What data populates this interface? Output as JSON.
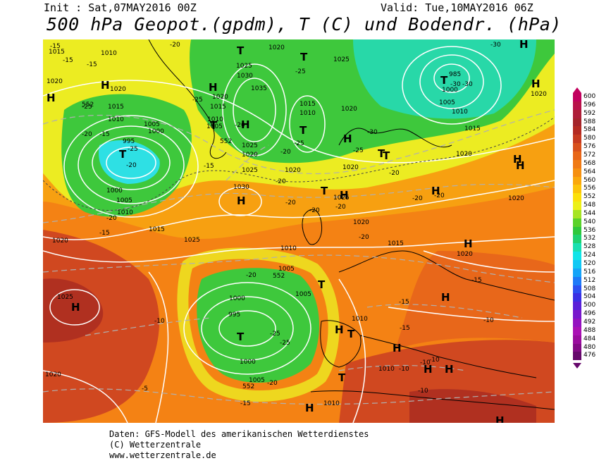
{
  "header": {
    "init": "Init : Sat,07MAY2016 00Z",
    "valid": "Valid: Tue,10MAY2016 06Z",
    "title": "500 hPa Geopot.(gpdm), T (C) und Bodendr. (hPa)"
  },
  "footer": {
    "line1": "Daten: GFS-Modell des amerikanischen Wetterdienstes",
    "line2": "(C) Wetterzentrale",
    "line3": "www.wetterzentrale.de"
  },
  "legend": {
    "levels": [
      {
        "value": "600",
        "color": "#c2005e"
      },
      {
        "value": "596",
        "color": "#b8124a"
      },
      {
        "value": "592",
        "color": "#ae1e38"
      },
      {
        "value": "588",
        "color": "#a4242a"
      },
      {
        "value": "584",
        "color": "#b42a22"
      },
      {
        "value": "580",
        "color": "#c63a20"
      },
      {
        "value": "576",
        "color": "#d8501c"
      },
      {
        "value": "572",
        "color": "#e86618"
      },
      {
        "value": "568",
        "color": "#f07a14"
      },
      {
        "value": "564",
        "color": "#f69010"
      },
      {
        "value": "560",
        "color": "#faa80c"
      },
      {
        "value": "556",
        "color": "#fcc40a"
      },
      {
        "value": "552",
        "color": "#fce00a"
      },
      {
        "value": "548",
        "color": "#ecf018"
      },
      {
        "value": "544",
        "color": "#a6e424"
      },
      {
        "value": "540",
        "color": "#5ad22a"
      },
      {
        "value": "536",
        "color": "#2ec83c"
      },
      {
        "value": "532",
        "color": "#1ed270"
      },
      {
        "value": "528",
        "color": "#18e0b0"
      },
      {
        "value": "524",
        "color": "#10e4e8"
      },
      {
        "value": "520",
        "color": "#10c8f4"
      },
      {
        "value": "516",
        "color": "#14a4f8"
      },
      {
        "value": "512",
        "color": "#1e7af8"
      },
      {
        "value": "508",
        "color": "#2c50f0"
      },
      {
        "value": "504",
        "color": "#3a30e4"
      },
      {
        "value": "500",
        "color": "#5a20d8"
      },
      {
        "value": "496",
        "color": "#7818cc"
      },
      {
        "value": "492",
        "color": "#9412c0"
      },
      {
        "value": "488",
        "color": "#aa10b4"
      },
      {
        "value": "484",
        "color": "#9a0c9e"
      },
      {
        "value": "480",
        "color": "#820a86"
      },
      {
        "value": "476",
        "color": "#66086c"
      }
    ]
  },
  "map": {
    "colors": {
      "green": "#3ec83c",
      "teal": "#28d8a8",
      "cyan": "#2ee0e4",
      "yellow": "#ecec22",
      "orange_light": "#f7a011",
      "orange": "#f48214",
      "orange_dark": "#e8671a",
      "red": "#d04820",
      "red_dark": "#b03020",
      "contour": "#ffffff",
      "temp": "#b0b0b0"
    },
    "pressure_labels": [
      {
        "id": "p1015a",
        "text": "1015"
      },
      {
        "id": "p1010a",
        "text": "1010"
      },
      {
        "id": "p1020a",
        "text": "1020"
      },
      {
        "id": "p1015b",
        "text": "1015"
      },
      {
        "id": "p1010b",
        "text": "1010"
      },
      {
        "id": "p1005a",
        "text": "1005"
      },
      {
        "id": "p1000a",
        "text": "1000"
      },
      {
        "id": "p995a",
        "text": "995"
      },
      {
        "id": "p1000b",
        "text": "1000"
      },
      {
        "id": "p1005b",
        "text": "1005"
      },
      {
        "id": "p1010c",
        "text": "1010"
      },
      {
        "id": "p1015c",
        "text": "1015"
      },
      {
        "id": "p1020b",
        "text": "1020"
      },
      {
        "id": "p1020c",
        "text": "1020"
      },
      {
        "id": "p1025a",
        "text": "1025"
      },
      {
        "id": "p1030a",
        "text": "1030"
      },
      {
        "id": "p1035a",
        "text": "1035"
      },
      {
        "id": "p1025b",
        "text": "1025"
      },
      {
        "id": "p1020d",
        "text": "1020"
      },
      {
        "id": "p1015d",
        "text": "1015"
      },
      {
        "id": "p1010d",
        "text": "1010"
      },
      {
        "id": "p1005c",
        "text": "1005"
      },
      {
        "id": "p1025c",
        "text": "1025"
      },
      {
        "id": "p1020e",
        "text": "1020"
      },
      {
        "id": "p1025d",
        "text": "1025"
      },
      {
        "id": "p1020f",
        "text": "1020"
      },
      {
        "id": "p1030b",
        "text": "1030"
      },
      {
        "id": "p1015e",
        "text": "1015"
      },
      {
        "id": "p1010e",
        "text": "1010"
      },
      {
        "id": "p1020g",
        "text": "1020"
      },
      {
        "id": "p1025e",
        "text": "1025"
      },
      {
        "id": "p1020h",
        "text": "1020"
      },
      {
        "id": "p985",
        "text": "985"
      },
      {
        "id": "p1000c",
        "text": "1000"
      },
      {
        "id": "p1005d",
        "text": "1005"
      },
      {
        "id": "p1010f",
        "text": "1010"
      },
      {
        "id": "p1015f",
        "text": "1015"
      },
      {
        "id": "p1020i",
        "text": "1020"
      },
      {
        "id": "p1020j",
        "text": "1020"
      },
      {
        "id": "p1020k",
        "text": "1020"
      },
      {
        "id": "p1025f",
        "text": "1025"
      },
      {
        "id": "p1015g",
        "text": "1015"
      },
      {
        "id": "p1020l",
        "text": "1020"
      },
      {
        "id": "p1010g",
        "text": "1010"
      },
      {
        "id": "p1005e",
        "text": "1005"
      },
      {
        "id": "p1000d",
        "text": "1000"
      },
      {
        "id": "p995b",
        "text": "995"
      },
      {
        "id": "p1000e",
        "text": "1000"
      },
      {
        "id": "p1005f",
        "text": "1005"
      },
      {
        "id": "p1005g",
        "text": "1005"
      },
      {
        "id": "p1010h",
        "text": "1010"
      },
      {
        "id": "p1010i",
        "text": "1010"
      },
      {
        "id": "p1010j",
        "text": "1010"
      },
      {
        "id": "p1020m",
        "text": "1020"
      },
      {
        "id": "p1025g",
        "text": "1025"
      },
      {
        "id": "p1020n",
        "text": "1020"
      },
      {
        "id": "p1020o",
        "text": "1020"
      }
    ],
    "temp_labels": [
      {
        "id": "t15a",
        "text": "-15"
      },
      {
        "id": "t15b",
        "text": "-15"
      },
      {
        "id": "t20a",
        "text": "-20"
      },
      {
        "id": "t25a",
        "text": "-25"
      },
      {
        "id": "t25b",
        "text": "-25"
      },
      {
        "id": "t20b",
        "text": "-20"
      },
      {
        "id": "t25c",
        "text": "-25"
      },
      {
        "id": "t20c",
        "text": "-20"
      },
      {
        "id": "t15c",
        "text": "-15"
      },
      {
        "id": "t20d",
        "text": "-20"
      },
      {
        "id": "t25d",
        "text": "-25"
      },
      {
        "id": "t20e",
        "text": "-20"
      },
      {
        "id": "t15d",
        "text": "-15"
      },
      {
        "id": "t20f",
        "text": "-20"
      },
      {
        "id": "t25e",
        "text": "-25"
      },
      {
        "id": "t30a",
        "text": "-30"
      },
      {
        "id": "t30b",
        "text": "-30"
      },
      {
        "id": "t30c",
        "text": "-30"
      },
      {
        "id": "t30d",
        "text": "-30"
      },
      {
        "id": "t25f",
        "text": "-25"
      },
      {
        "id": "t20g",
        "text": "-20"
      },
      {
        "id": "t20h",
        "text": "-20"
      },
      {
        "id": "t20i",
        "text": "-20"
      },
      {
        "id": "t20j",
        "text": "-20"
      },
      {
        "id": "t20k",
        "text": "-20"
      },
      {
        "id": "t20l",
        "text": "-20"
      },
      {
        "id": "t15e",
        "text": "-15"
      },
      {
        "id": "t20m",
        "text": "-20"
      },
      {
        "id": "t20n",
        "text": "-20"
      },
      {
        "id": "t20o",
        "text": "-20"
      },
      {
        "id": "t25g",
        "text": "-25"
      },
      {
        "id": "t25h",
        "text": "-25"
      },
      {
        "id": "t20p",
        "text": "-20"
      },
      {
        "id": "t15f",
        "text": "-15"
      },
      {
        "id": "t15g",
        "text": "-15"
      },
      {
        "id": "t15h",
        "text": "-15"
      },
      {
        "id": "t15i",
        "text": "-15"
      },
      {
        "id": "t10a",
        "text": "-10"
      },
      {
        "id": "t10b",
        "text": "-10"
      },
      {
        "id": "t10c",
        "text": "-10"
      },
      {
        "id": "t10d",
        "text": "-10"
      },
      {
        "id": "t5a",
        "text": "-5"
      },
      {
        "id": "t10e",
        "text": "-10"
      },
      {
        "id": "t15j",
        "text": "-15"
      },
      {
        "id": "t10f",
        "text": "-10"
      }
    ],
    "geopot_labels": [
      {
        "id": "g552a",
        "text": "552"
      },
      {
        "id": "g552b",
        "text": "552"
      },
      {
        "id": "g552c",
        "text": "552"
      },
      {
        "id": "g552d",
        "text": "552"
      }
    ],
    "centers": [
      {
        "id": "cH1",
        "text": "H"
      },
      {
        "id": "cT1",
        "text": "T"
      },
      {
        "id": "cH2",
        "text": "H"
      },
      {
        "id": "cT2",
        "text": "T"
      },
      {
        "id": "cT3",
        "text": "T"
      },
      {
        "id": "cH3",
        "text": "H"
      },
      {
        "id": "cT4",
        "text": "T"
      },
      {
        "id": "cT5",
        "text": "T"
      },
      {
        "id": "cH4",
        "text": "H"
      },
      {
        "id": "cH5",
        "text": "H"
      },
      {
        "id": "cT6",
        "text": "T"
      },
      {
        "id": "cH6",
        "text": "H"
      },
      {
        "id": "cH7",
        "text": "H"
      },
      {
        "id": "cT7",
        "text": "T"
      },
      {
        "id": "cH8",
        "text": "H"
      },
      {
        "id": "cT8",
        "text": "T"
      },
      {
        "id": "cH9",
        "text": "H"
      },
      {
        "id": "cH10",
        "text": "H"
      },
      {
        "id": "cT9",
        "text": "T"
      },
      {
        "id": "cH11",
        "text": "H"
      },
      {
        "id": "cH12",
        "text": "H"
      },
      {
        "id": "cH13",
        "text": "H"
      },
      {
        "id": "cH14",
        "text": "H"
      },
      {
        "id": "cT10",
        "text": "T"
      },
      {
        "id": "cH15",
        "text": "H"
      },
      {
        "id": "cH16",
        "text": "H"
      },
      {
        "id": "cT11",
        "text": "T"
      },
      {
        "id": "cT12",
        "text": "T"
      },
      {
        "id": "cH17",
        "text": "H"
      },
      {
        "id": "cH18",
        "text": "H"
      },
      {
        "id": "cH19",
        "text": "H"
      },
      {
        "id": "cH20",
        "text": "H"
      },
      {
        "id": "cH21",
        "text": "H"
      },
      {
        "id": "cT13",
        "text": "T"
      }
    ]
  }
}
